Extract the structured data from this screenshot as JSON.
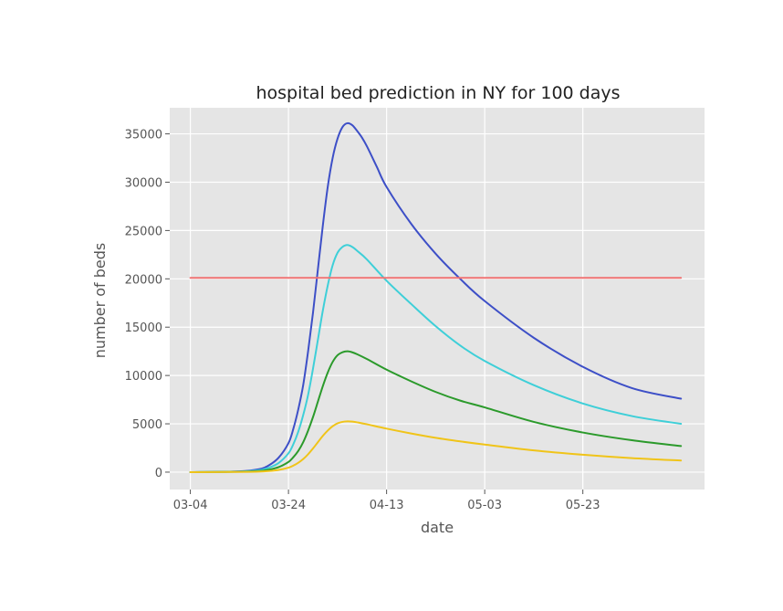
{
  "chart_data": {
    "type": "line",
    "title": "hospital bed prediction in NY for 100 days",
    "xlabel": "date",
    "ylabel": "number of beds",
    "x_ticks": [
      "03-04",
      "03-24",
      "04-13",
      "05-03",
      "05-23"
    ],
    "x_tick_days": [
      0,
      20,
      40,
      60,
      80
    ],
    "xlim": [
      -4.2,
      104.8
    ],
    "y_ticks": [
      0,
      5000,
      10000,
      15000,
      20000,
      25000,
      30000,
      35000
    ],
    "ylim": [
      -1800,
      37700
    ],
    "grid": true,
    "background": "#e5e5e5",
    "series": [
      {
        "color": "#3d4fc7",
        "days": [
          0,
          10,
          14,
          16,
          18,
          20,
          21,
          22,
          23,
          24,
          25,
          26,
          27,
          28,
          29,
          30,
          31,
          32,
          33,
          34,
          35,
          36,
          38,
          40,
          45,
          50,
          55,
          60,
          70,
          80,
          90,
          100
        ],
        "values": [
          0,
          80,
          300,
          700,
          1500,
          3000,
          4500,
          6500,
          9000,
          12500,
          16500,
          21000,
          25500,
          29500,
          32500,
          34500,
          35700,
          36100,
          35900,
          35300,
          34600,
          33700,
          31600,
          29500,
          25700,
          22600,
          20000,
          17700,
          13900,
          10900,
          8700,
          7600
        ]
      },
      {
        "color": "#3ecfd8",
        "days": [
          0,
          10,
          14,
          16,
          18,
          20,
          21,
          22,
          23,
          24,
          25,
          26,
          27,
          28,
          29,
          30,
          31,
          32,
          33,
          34,
          36,
          40,
          45,
          50,
          55,
          60,
          70,
          80,
          90,
          100
        ],
        "values": [
          0,
          60,
          200,
          450,
          950,
          1950,
          2900,
          4200,
          5900,
          8000,
          10700,
          13700,
          16700,
          19300,
          21400,
          22700,
          23300,
          23500,
          23300,
          22900,
          22000,
          19800,
          17400,
          15100,
          13100,
          11500,
          9000,
          7100,
          5800,
          5000
        ]
      },
      {
        "color": "#2b9a2b",
        "days": [
          0,
          10,
          14,
          16,
          18,
          20,
          21,
          22,
          23,
          24,
          25,
          26,
          27,
          28,
          29,
          30,
          31,
          32,
          33,
          34,
          36,
          40,
          45,
          50,
          55,
          60,
          70,
          80,
          90,
          100
        ],
        "values": [
          0,
          40,
          110,
          250,
          520,
          1050,
          1550,
          2200,
          3100,
          4300,
          5700,
          7300,
          8900,
          10300,
          11400,
          12100,
          12400,
          12500,
          12400,
          12200,
          11700,
          10600,
          9400,
          8300,
          7400,
          6700,
          5200,
          4100,
          3300,
          2700
        ]
      },
      {
        "color": "#f0c419",
        "days": [
          0,
          10,
          14,
          16,
          18,
          20,
          21,
          22,
          23,
          24,
          25,
          26,
          27,
          28,
          29,
          30,
          31,
          32,
          33,
          34,
          36,
          40,
          45,
          50,
          55,
          60,
          70,
          80,
          90,
          100
        ],
        "values": [
          0,
          20,
          50,
          110,
          230,
          460,
          680,
          970,
          1350,
          1850,
          2450,
          3100,
          3750,
          4300,
          4750,
          5050,
          5200,
          5250,
          5230,
          5150,
          4950,
          4500,
          4000,
          3550,
          3180,
          2850,
          2250,
          1800,
          1450,
          1200
        ]
      },
      {
        "color": "#f07373",
        "days": [
          0,
          100
        ],
        "values": [
          20100,
          20100
        ]
      }
    ]
  }
}
